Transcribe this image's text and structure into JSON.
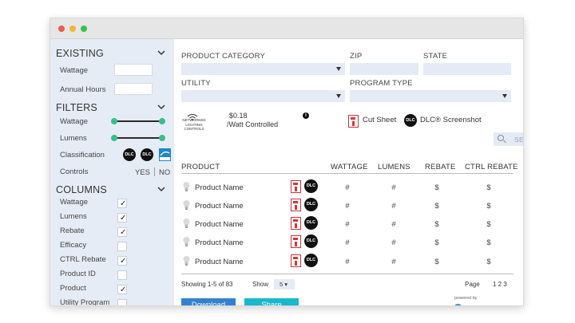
{
  "window": {
    "colors": {
      "close": "#ee5b52",
      "minimize": "#f4b534",
      "maximize": "#34c24a"
    }
  },
  "sidebar": {
    "existing": {
      "title": "EXISTING",
      "fields": [
        {
          "label": "Wattage",
          "value": ""
        },
        {
          "label": "Annual Hours",
          "value": ""
        }
      ]
    },
    "filters": {
      "title": "FILTERS",
      "sliders": [
        {
          "label": "Wattage"
        },
        {
          "label": "Lumens"
        }
      ],
      "classification_label": "Classification",
      "classification_badges": [
        "DLC",
        "DLC",
        "energy-star-icon"
      ],
      "controls_label": "Controls",
      "yes": "YES",
      "no": "NO"
    },
    "columns": {
      "title": "COLUMNS",
      "items": [
        {
          "label": "Wattage",
          "checked": true
        },
        {
          "label": "Lumens",
          "checked": true
        },
        {
          "label": "Rebate",
          "checked": true
        },
        {
          "label": "Efficacy",
          "checked": false
        },
        {
          "label": "CTRL Rebate",
          "checked": true
        },
        {
          "label": "Product ID",
          "checked": false
        },
        {
          "label": "Product",
          "checked": true
        },
        {
          "label": "Utility Program",
          "checked": false
        }
      ],
      "checkmark": "✓"
    }
  },
  "filters_bar": {
    "product_category": {
      "label": "PRODUCT CATEGORY",
      "value": ""
    },
    "zip": {
      "label": "ZIP",
      "value": ""
    },
    "state": {
      "label": "STATE",
      "value": ""
    },
    "utility": {
      "label": "UTILITY",
      "value": ""
    },
    "program_type": {
      "label": "PROGRAM TYPE",
      "value": ""
    }
  },
  "toolbar": {
    "nlc_text": "NETWORKED LIGHTING CONTROLS",
    "price": "$0.18",
    "price_unit": "/Watt Controlled",
    "info": "i",
    "cut_sheet": "Cut Sheet",
    "dlc_badge": "DLC",
    "dlc_screenshot": "DLC® Screenshot",
    "search_placeholder": "SEARCH"
  },
  "table": {
    "headers": [
      "PRODUCT",
      "WATTAGE",
      "LUMENS",
      "REBATE",
      "CTRL REBATE"
    ],
    "rows": [
      {
        "product": "Product Name",
        "dlc": "DLC",
        "wattage": "#",
        "lumens": "#",
        "rebate": "$",
        "ctrl_rebate": "$"
      },
      {
        "product": "Product Name",
        "dlc": "DLC",
        "wattage": "#",
        "lumens": "#",
        "rebate": "$",
        "ctrl_rebate": "$"
      },
      {
        "product": "Product Name",
        "dlc": "DLC",
        "wattage": "#",
        "lumens": "#",
        "rebate": "$",
        "ctrl_rebate": "$"
      },
      {
        "product": "Product Name",
        "dlc": "DLC",
        "wattage": "#",
        "lumens": "#",
        "rebate": "$",
        "ctrl_rebate": "$"
      },
      {
        "product": "Product Name",
        "dlc": "DLC",
        "wattage": "#",
        "lumens": "#",
        "rebate": "$",
        "ctrl_rebate": "$"
      }
    ]
  },
  "footer": {
    "showing": "Showing 1-5 of 83",
    "show_label": "Show",
    "show_value": "5 ▾",
    "page_label": "Page",
    "pages": "1 2 3",
    "download": "Download",
    "share": "Share",
    "powered_by": "powered by",
    "brand": "encentivenergy"
  }
}
